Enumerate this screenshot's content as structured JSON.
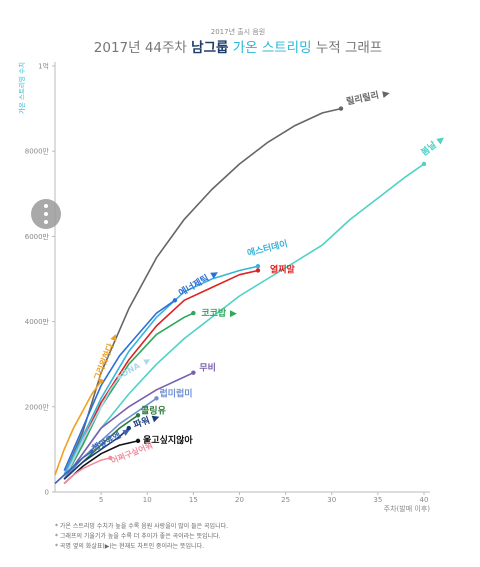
{
  "header": {
    "small_title": "2017년 출시 음원",
    "title_prefix": "2017년 44주차 ",
    "title_group": "남그룹",
    "title_mid": " 가온 스트리밍",
    "title_suffix": " 누적 그래프"
  },
  "colors": {
    "title_gray": "#777777",
    "group_blue": "#1f3d6b",
    "accent_cyan": "#2bb7d8",
    "axis": "#999999"
  },
  "footnotes": [
    "* 가온 스트리밍 수치가 높을 수록 음원 사랑을이 많이 들은 곡입니다.",
    "* 그래프의 기울기가 높을 수록 더 추이가 좋은 곡이라는 뜻입니다.",
    "* 곡명 옆의 화살표(▶)는 현재도 차트인 중이라는 뜻입니다."
  ],
  "chart_data": {
    "type": "line",
    "ylabel": "가온 스트리밍 수치",
    "xlabel": "주차(발매 이후)",
    "ylim": [
      0,
      100000000
    ],
    "xlim": [
      0,
      40
    ],
    "yticks": [
      {
        "value": 0,
        "label": "0"
      },
      {
        "value": 20000000,
        "label": "2000만"
      },
      {
        "value": 40000000,
        "label": "4000만"
      },
      {
        "value": 60000000,
        "label": "6000만"
      },
      {
        "value": 80000000,
        "label": "8000만"
      },
      {
        "value": 100000000,
        "label": "1억"
      }
    ],
    "xticks": [
      {
        "value": 5,
        "label": "5"
      },
      {
        "value": 10,
        "label": "10"
      },
      {
        "value": 15,
        "label": "15"
      },
      {
        "value": 20,
        "label": "20"
      },
      {
        "value": 25,
        "label": "25"
      },
      {
        "value": 30,
        "label": "30"
      },
      {
        "value": 35,
        "label": "35"
      },
      {
        "value": 40,
        "label": "40"
      }
    ],
    "series": [
      {
        "name": "릴리릴리",
        "color": "#666666",
        "arrow": true,
        "x": [
          1,
          3,
          5,
          8,
          11,
          14,
          17,
          20,
          23,
          26,
          29,
          31
        ],
        "y": [
          4000000,
          14000000,
          28000000,
          43000000,
          55000000,
          64000000,
          71000000,
          77000000,
          82000000,
          86000000,
          89000000,
          90000000
        ]
      },
      {
        "name": "봄날",
        "color": "#4fd2c6",
        "arrow": true,
        "x": [
          1,
          3,
          5,
          8,
          11,
          14,
          17,
          20,
          23,
          26,
          29,
          32,
          35,
          38,
          40
        ],
        "y": [
          3000000,
          9000000,
          15000000,
          23000000,
          30000000,
          36000000,
          41000000,
          46000000,
          50000000,
          54000000,
          58000000,
          64000000,
          69000000,
          74000000,
          77000000
        ]
      },
      {
        "name": "에스터데이",
        "color": "#38b4dc",
        "arrow": false,
        "x": [
          1,
          3,
          5,
          8,
          11,
          14,
          17,
          20,
          22
        ],
        "y": [
          4000000,
          13000000,
          22000000,
          33000000,
          41000000,
          47000000,
          50000000,
          52000000,
          53000000
        ]
      },
      {
        "name": "열찌말",
        "color": "#dd2222",
        "arrow": false,
        "x": [
          1,
          3,
          5,
          8,
          11,
          14,
          17,
          20,
          22
        ],
        "y": [
          3000000,
          12000000,
          21000000,
          31000000,
          39000000,
          45000000,
          48000000,
          51000000,
          52000000
        ]
      },
      {
        "name": "에너제틱",
        "color": "#2e6fd6",
        "arrow": true,
        "x": [
          1,
          3,
          5,
          7,
          9,
          11,
          13
        ],
        "y": [
          5000000,
          15000000,
          25000000,
          32000000,
          37000000,
          42000000,
          45000000
        ]
      },
      {
        "name": "코코밥",
        "color": "#2ea85a",
        "arrow": true,
        "x": [
          1,
          3,
          5,
          8,
          11,
          14,
          15
        ],
        "y": [
          3000000,
          11000000,
          20000000,
          30000000,
          37000000,
          41000000,
          42000000
        ]
      },
      {
        "name": "DNA",
        "color": "#a8d8ee",
        "arrow": true,
        "x": [
          1,
          3,
          5,
          6,
          7
        ],
        "y": [
          3000000,
          12000000,
          20000000,
          24000000,
          27000000
        ]
      },
      {
        "name": "그리워하다",
        "color": "#f0a020",
        "arrow": true,
        "x": [
          0,
          1,
          2,
          3,
          4,
          5
        ],
        "y": [
          4000000,
          10000000,
          15000000,
          19000000,
          23000000,
          26000000
        ]
      },
      {
        "name": "무비",
        "color": "#7a5fb0",
        "arrow": false,
        "x": [
          1,
          3,
          5,
          8,
          11,
          14,
          15
        ],
        "y": [
          3000000,
          9000000,
          15000000,
          20000000,
          24000000,
          27000000,
          28000000
        ]
      },
      {
        "name": "럽미럽미",
        "color": "#6f8fd4",
        "arrow": false,
        "x": [
          1,
          3,
          5,
          7,
          9,
          11
        ],
        "y": [
          3000000,
          8000000,
          12000000,
          16000000,
          19000000,
          22000000
        ]
      },
      {
        "name": "콜링유",
        "color": "#2a7a3a",
        "arrow": false,
        "x": [
          1,
          3,
          5,
          7,
          9
        ],
        "y": [
          3000000,
          7000000,
          11000000,
          15000000,
          18000000
        ]
      },
      {
        "name": "파워",
        "color": "#1a3a7a",
        "arrow": true,
        "x": [
          1,
          3,
          5,
          7,
          8
        ],
        "y": [
          3000000,
          7000000,
          10000000,
          13000000,
          15000000
        ]
      },
      {
        "name": "울고싶지않아",
        "color": "#111111",
        "arrow": false,
        "x": [
          1,
          3,
          5,
          7,
          9
        ],
        "y": [
          2000000,
          6000000,
          9000000,
          11000000,
          12000000
        ]
      },
      {
        "name": "해앞유엔",
        "color": "#3a63b8",
        "arrow": true,
        "x": [
          0,
          1,
          2,
          3,
          4
        ],
        "y": [
          2000000,
          4000000,
          6000000,
          8000000,
          9500000
        ]
      },
      {
        "name": "어쩌구싶어워",
        "color": "#f08e9e",
        "arrow": false,
        "x": [
          1,
          2,
          3,
          4,
          5,
          6
        ],
        "y": [
          2000000,
          4000000,
          5500000,
          6500000,
          7500000,
          8000000
        ]
      }
    ]
  }
}
